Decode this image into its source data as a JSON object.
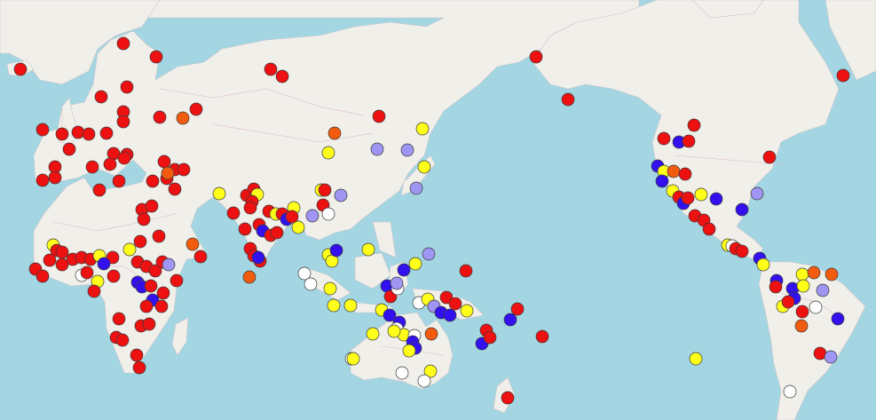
{
  "map": {
    "title": "",
    "colors": {
      "water": "#a3d6e2",
      "land": "#f1efe9",
      "red": "#ee1111",
      "orange": "#f25c0e",
      "yellow": "#ffff1a",
      "blue": "#3311ee",
      "lavender": "#9f95f2",
      "white": "#ffffff"
    },
    "marker_categories": [
      "red",
      "orange",
      "yellow",
      "blue",
      "lavender",
      "white"
    ]
  }
}
